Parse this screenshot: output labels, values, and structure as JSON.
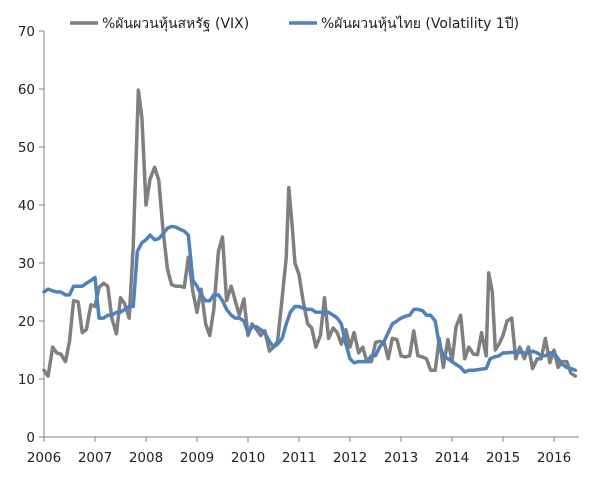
{
  "chart_data": {
    "type": "line",
    "title": "",
    "xlabel": "",
    "ylabel": "",
    "ylim": [
      0,
      70
    ],
    "xlim": [
      2006,
      2016.5
    ],
    "y_ticks": [
      "0",
      "10",
      "20",
      "30",
      "40",
      "50",
      "60",
      "70"
    ],
    "x_ticks": [
      "2006",
      "2007",
      "2008",
      "2009",
      "2010",
      "2011",
      "2012",
      "2013",
      "2014",
      "2015",
      "2016"
    ],
    "grid": false,
    "legend_position": "top",
    "series": [
      {
        "name": "%ผันผวนหุ้นสหรัฐ (VIX)",
        "color": "#7f7f7f",
        "points": [
          [
            2006.0,
            11.5
          ],
          [
            2006.08,
            10.5
          ],
          [
            2006.17,
            15.5
          ],
          [
            2006.25,
            14.5
          ],
          [
            2006.33,
            14.3
          ],
          [
            2006.42,
            13.0
          ],
          [
            2006.5,
            16.5
          ],
          [
            2006.58,
            23.5
          ],
          [
            2006.67,
            23.3
          ],
          [
            2006.75,
            18.0
          ],
          [
            2006.83,
            18.5
          ],
          [
            2006.92,
            22.8
          ],
          [
            2007.0,
            22.5
          ],
          [
            2007.08,
            25.8
          ],
          [
            2007.17,
            26.5
          ],
          [
            2007.25,
            26.0
          ],
          [
            2007.33,
            20.5
          ],
          [
            2007.42,
            17.8
          ],
          [
            2007.5,
            24.0
          ],
          [
            2007.58,
            23.0
          ],
          [
            2007.67,
            20.5
          ],
          [
            2007.75,
            33.0
          ],
          [
            2007.85,
            59.8
          ],
          [
            2007.92,
            55.0
          ],
          [
            2008.0,
            40.0
          ],
          [
            2008.08,
            44.5
          ],
          [
            2008.17,
            46.5
          ],
          [
            2008.25,
            44.3
          ],
          [
            2008.33,
            36.0
          ],
          [
            2008.42,
            29.0
          ],
          [
            2008.5,
            26.3
          ],
          [
            2008.58,
            26.0
          ],
          [
            2008.67,
            26.0
          ],
          [
            2008.75,
            25.8
          ],
          [
            2008.83,
            31.0
          ],
          [
            2008.92,
            25.0
          ],
          [
            2009.0,
            21.5
          ],
          [
            2009.08,
            25.5
          ],
          [
            2009.17,
            19.5
          ],
          [
            2009.25,
            17.5
          ],
          [
            2009.33,
            22.0
          ],
          [
            2009.42,
            32.0
          ],
          [
            2009.5,
            34.5
          ],
          [
            2009.58,
            23.5
          ],
          [
            2009.67,
            26.0
          ],
          [
            2009.75,
            23.5
          ],
          [
            2009.83,
            21.0
          ],
          [
            2009.92,
            23.8
          ],
          [
            2010.0,
            17.5
          ],
          [
            2010.08,
            19.5
          ],
          [
            2010.17,
            18.5
          ],
          [
            2010.25,
            17.5
          ],
          [
            2010.33,
            18.3
          ],
          [
            2010.42,
            14.8
          ],
          [
            2010.5,
            15.5
          ],
          [
            2010.58,
            16.5
          ],
          [
            2010.67,
            24.0
          ],
          [
            2010.75,
            31.0
          ],
          [
            2010.8,
            43.0
          ],
          [
            2010.87,
            36.0
          ],
          [
            2010.92,
            30.0
          ],
          [
            2011.0,
            28.0
          ],
          [
            2011.08,
            23.5
          ],
          [
            2011.17,
            19.5
          ],
          [
            2011.25,
            18.8
          ],
          [
            2011.33,
            15.5
          ],
          [
            2011.42,
            17.5
          ],
          [
            2011.5,
            24.0
          ],
          [
            2011.58,
            17.0
          ],
          [
            2011.67,
            18.8
          ],
          [
            2011.75,
            18.0
          ],
          [
            2011.83,
            16.0
          ],
          [
            2011.92,
            18.5
          ],
          [
            2012.0,
            15.5
          ],
          [
            2012.08,
            18.0
          ],
          [
            2012.17,
            14.5
          ],
          [
            2012.25,
            15.5
          ],
          [
            2012.33,
            13.0
          ],
          [
            2012.42,
            13.0
          ],
          [
            2012.5,
            16.3
          ],
          [
            2012.58,
            16.5
          ],
          [
            2012.67,
            16.3
          ],
          [
            2012.75,
            13.5
          ],
          [
            2012.83,
            17.0
          ],
          [
            2012.92,
            16.8
          ],
          [
            2013.0,
            14.0
          ],
          [
            2013.08,
            13.8
          ],
          [
            2013.17,
            14.0
          ],
          [
            2013.25,
            18.3
          ],
          [
            2013.33,
            14.0
          ],
          [
            2013.42,
            13.8
          ],
          [
            2013.5,
            13.5
          ],
          [
            2013.58,
            11.5
          ],
          [
            2013.67,
            11.5
          ],
          [
            2013.75,
            17.0
          ],
          [
            2013.83,
            12.0
          ],
          [
            2013.92,
            16.8
          ],
          [
            2014.0,
            13.0
          ],
          [
            2014.08,
            19.0
          ],
          [
            2014.17,
            21.0
          ],
          [
            2014.25,
            13.5
          ],
          [
            2014.33,
            15.5
          ],
          [
            2014.42,
            14.3
          ],
          [
            2014.5,
            14.2
          ],
          [
            2014.58,
            18.0
          ],
          [
            2014.67,
            14.0
          ],
          [
            2014.72,
            28.3
          ],
          [
            2014.79,
            25.0
          ],
          [
            2014.85,
            15.0
          ],
          [
            2014.92,
            16.0
          ],
          [
            2015.0,
            17.5
          ],
          [
            2015.08,
            20.0
          ],
          [
            2015.17,
            20.5
          ],
          [
            2015.25,
            13.5
          ],
          [
            2015.33,
            15.5
          ],
          [
            2015.42,
            13.5
          ],
          [
            2015.5,
            15.5
          ],
          [
            2015.58,
            11.8
          ],
          [
            2015.67,
            13.5
          ],
          [
            2015.75,
            13.5
          ],
          [
            2015.83,
            17.0
          ],
          [
            2015.92,
            12.8
          ],
          [
            2016.0,
            15.0
          ],
          [
            2016.08,
            12.0
          ],
          [
            2016.17,
            13.0
          ],
          [
            2016.25,
            13.0
          ],
          [
            2016.33,
            11.0
          ],
          [
            2016.42,
            10.5
          ]
        ]
      },
      {
        "name": "%ผันผวนหุ้นไทย (Volatility 1ปี)",
        "color": "#4f81bd",
        "points": [
          [
            2006.0,
            25.0
          ],
          [
            2006.08,
            25.5
          ],
          [
            2006.17,
            25.2
          ],
          [
            2006.25,
            25.0
          ],
          [
            2006.33,
            25.0
          ],
          [
            2006.42,
            24.5
          ],
          [
            2006.5,
            24.5
          ],
          [
            2006.58,
            26.0
          ],
          [
            2006.67,
            26.0
          ],
          [
            2006.75,
            26.0
          ],
          [
            2006.83,
            26.5
          ],
          [
            2006.92,
            27.0
          ],
          [
            2007.0,
            27.5
          ],
          [
            2007.08,
            20.5
          ],
          [
            2007.17,
            20.5
          ],
          [
            2007.25,
            21.0
          ],
          [
            2007.33,
            21.0
          ],
          [
            2007.42,
            21.5
          ],
          [
            2007.5,
            21.5
          ],
          [
            2007.58,
            22.0
          ],
          [
            2007.67,
            22.5
          ],
          [
            2007.75,
            22.5
          ],
          [
            2007.83,
            32.0
          ],
          [
            2007.92,
            33.5
          ],
          [
            2008.0,
            34.0
          ],
          [
            2008.08,
            34.8
          ],
          [
            2008.17,
            34.0
          ],
          [
            2008.25,
            34.2
          ],
          [
            2008.33,
            35.0
          ],
          [
            2008.42,
            36.0
          ],
          [
            2008.5,
            36.3
          ],
          [
            2008.58,
            36.2
          ],
          [
            2008.67,
            35.8
          ],
          [
            2008.75,
            35.5
          ],
          [
            2008.83,
            34.8
          ],
          [
            2008.92,
            27.0
          ],
          [
            2009.0,
            26.0
          ],
          [
            2009.08,
            24.5
          ],
          [
            2009.17,
            23.5
          ],
          [
            2009.25,
            23.5
          ],
          [
            2009.33,
            24.5
          ],
          [
            2009.42,
            24.5
          ],
          [
            2009.5,
            23.5
          ],
          [
            2009.58,
            22.0
          ],
          [
            2009.67,
            21.0
          ],
          [
            2009.75,
            20.5
          ],
          [
            2009.83,
            20.5
          ],
          [
            2009.92,
            20.0
          ],
          [
            2010.0,
            18.0
          ],
          [
            2010.08,
            19.0
          ],
          [
            2010.17,
            19.0
          ],
          [
            2010.25,
            18.5
          ],
          [
            2010.33,
            18.0
          ],
          [
            2010.42,
            16.5
          ],
          [
            2010.5,
            15.5
          ],
          [
            2010.58,
            16.0
          ],
          [
            2010.67,
            17.0
          ],
          [
            2010.75,
            19.5
          ],
          [
            2010.83,
            21.5
          ],
          [
            2010.92,
            22.5
          ],
          [
            2011.0,
            22.5
          ],
          [
            2011.08,
            22.2
          ],
          [
            2011.17,
            22.0
          ],
          [
            2011.25,
            22.0
          ],
          [
            2011.33,
            21.5
          ],
          [
            2011.42,
            21.5
          ],
          [
            2011.5,
            21.5
          ],
          [
            2011.58,
            21.5
          ],
          [
            2011.67,
            21.0
          ],
          [
            2011.75,
            20.5
          ],
          [
            2011.83,
            19.5
          ],
          [
            2011.92,
            16.0
          ],
          [
            2012.0,
            13.5
          ],
          [
            2012.08,
            12.8
          ],
          [
            2012.17,
            13.0
          ],
          [
            2012.25,
            13.0
          ],
          [
            2012.33,
            13.0
          ],
          [
            2012.42,
            14.0
          ],
          [
            2012.5,
            14.0
          ],
          [
            2012.58,
            15.5
          ],
          [
            2012.67,
            16.5
          ],
          [
            2012.75,
            18.0
          ],
          [
            2012.83,
            19.5
          ],
          [
            2012.92,
            20.0
          ],
          [
            2013.0,
            20.5
          ],
          [
            2013.08,
            20.8
          ],
          [
            2013.17,
            21.0
          ],
          [
            2013.25,
            22.0
          ],
          [
            2013.33,
            22.0
          ],
          [
            2013.42,
            21.8
          ],
          [
            2013.5,
            21.0
          ],
          [
            2013.58,
            21.0
          ],
          [
            2013.67,
            20.0
          ],
          [
            2013.75,
            16.0
          ],
          [
            2013.83,
            14.0
          ],
          [
            2013.92,
            13.5
          ],
          [
            2014.0,
            13.0
          ],
          [
            2014.08,
            12.5
          ],
          [
            2014.17,
            12.0
          ],
          [
            2014.25,
            11.2
          ],
          [
            2014.33,
            11.5
          ],
          [
            2014.42,
            11.5
          ],
          [
            2014.5,
            11.6
          ],
          [
            2014.58,
            11.7
          ],
          [
            2014.67,
            11.8
          ],
          [
            2014.75,
            13.5
          ],
          [
            2014.83,
            13.8
          ],
          [
            2014.92,
            14.0
          ],
          [
            2015.0,
            14.5
          ],
          [
            2015.08,
            14.5
          ],
          [
            2015.17,
            14.6
          ],
          [
            2015.25,
            14.6
          ],
          [
            2015.33,
            14.6
          ],
          [
            2015.42,
            14.5
          ],
          [
            2015.5,
            14.5
          ],
          [
            2015.58,
            14.8
          ],
          [
            2015.67,
            14.5
          ],
          [
            2015.75,
            14.0
          ],
          [
            2015.83,
            14.0
          ],
          [
            2015.92,
            14.5
          ],
          [
            2016.0,
            14.5
          ],
          [
            2016.08,
            13.5
          ],
          [
            2016.17,
            12.5
          ],
          [
            2016.25,
            12.0
          ],
          [
            2016.33,
            11.8
          ],
          [
            2016.42,
            11.5
          ]
        ]
      }
    ]
  }
}
